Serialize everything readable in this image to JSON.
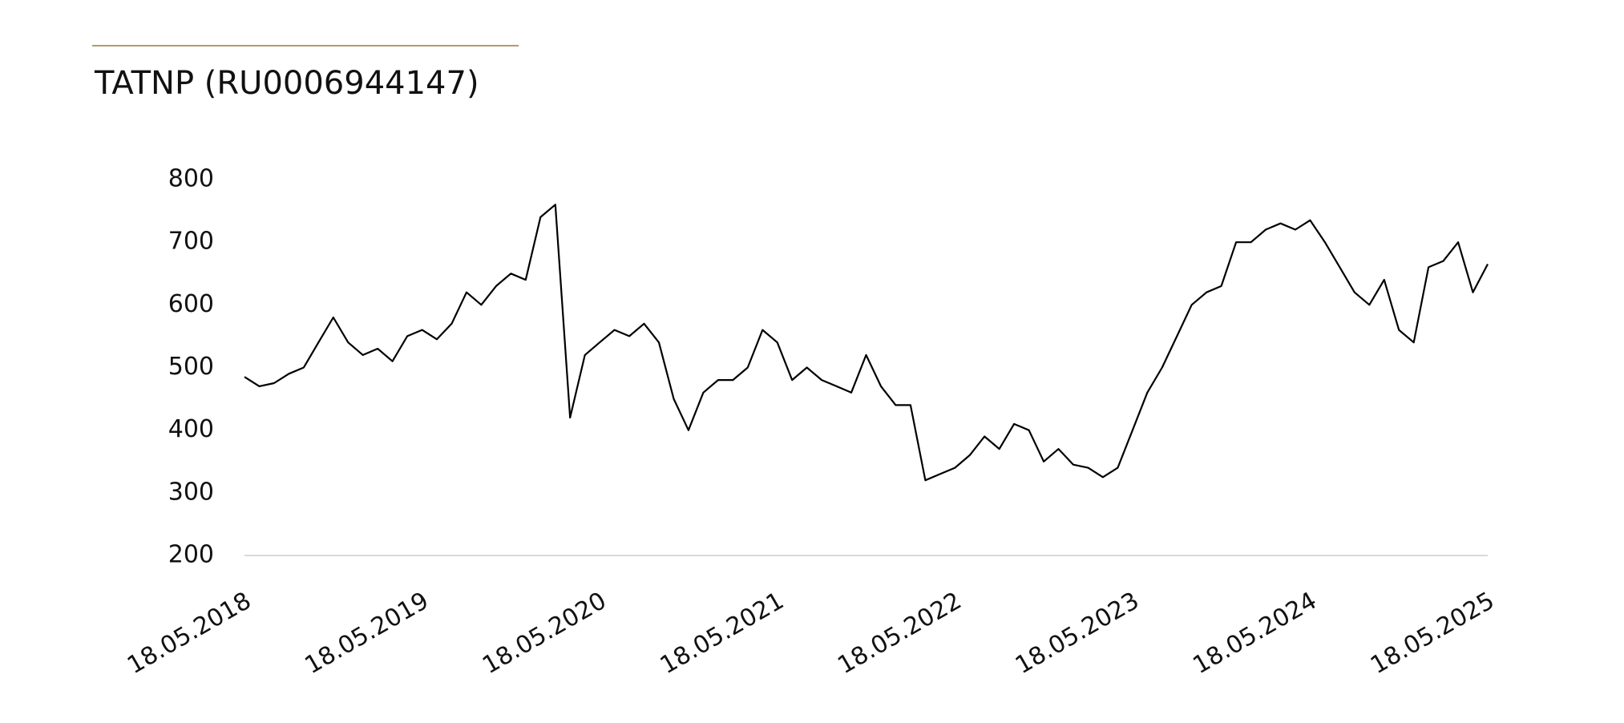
{
  "chart_data": {
    "type": "line",
    "title": "TATNP (RU0006944147)",
    "categories": [
      "18.05.2018",
      null,
      null,
      null,
      null,
      null,
      null,
      null,
      null,
      null,
      null,
      null,
      "18.05.2019",
      null,
      null,
      null,
      null,
      null,
      null,
      null,
      null,
      null,
      null,
      null,
      "18.05.2020",
      null,
      null,
      null,
      null,
      null,
      null,
      null,
      null,
      null,
      null,
      null,
      "18.05.2021",
      null,
      null,
      null,
      null,
      null,
      null,
      null,
      null,
      null,
      null,
      null,
      "18.05.2022",
      null,
      null,
      null,
      null,
      null,
      null,
      null,
      null,
      null,
      null,
      null,
      "18.05.2023",
      null,
      null,
      null,
      null,
      null,
      null,
      null,
      null,
      null,
      null,
      null,
      "18.05.2024",
      null,
      null,
      null,
      null,
      null,
      null,
      null,
      null,
      null,
      null,
      null,
      "18.05.2025"
    ],
    "series": [
      {
        "name": "TATNP",
        "color": "#000000",
        "values": [
          485,
          470,
          475,
          490,
          500,
          540,
          580,
          540,
          520,
          530,
          510,
          550,
          560,
          545,
          570,
          620,
          600,
          630,
          650,
          640,
          740,
          760,
          420,
          520,
          540,
          560,
          550,
          570,
          540,
          450,
          400,
          460,
          480,
          480,
          500,
          560,
          540,
          480,
          500,
          480,
          470,
          460,
          520,
          470,
          440,
          440,
          320,
          330,
          340,
          360,
          390,
          370,
          410,
          400,
          350,
          370,
          345,
          340,
          325,
          340,
          400,
          460,
          500,
          550,
          600,
          620,
          630,
          700,
          700,
          720,
          730,
          720,
          735,
          700,
          660,
          620,
          600,
          640,
          560,
          540,
          660,
          670,
          700,
          620,
          665
        ]
      }
    ],
    "ylim": [
      200,
      800
    ],
    "yticks": [
      200,
      300,
      400,
      500,
      600,
      700,
      800
    ],
    "grid": false
  }
}
